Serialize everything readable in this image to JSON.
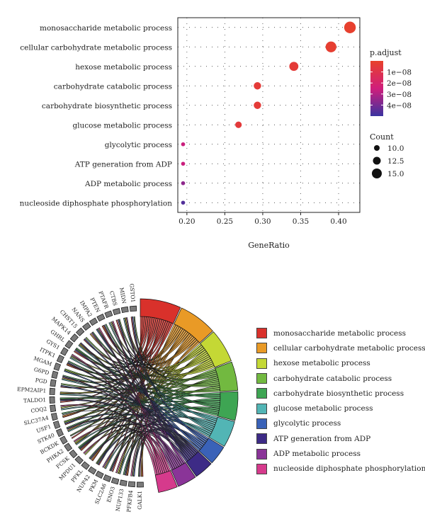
{
  "chart_data": [
    {
      "type": "scatter",
      "title": "",
      "xlabel": "GeneRatio",
      "ylabel": "",
      "xlim": [
        0.188,
        0.428
      ],
      "xticks": [
        0.2,
        0.25,
        0.3,
        0.35,
        0.4
      ],
      "xtick_labels": [
        "0.20",
        "0.25",
        "0.30",
        "0.35",
        "0.40"
      ],
      "grid": true,
      "legend_placement": "right",
      "categories": [
        "monosaccharide metabolic process",
        "cellular carbohydrate metabolic process",
        "hexose metabolic process",
        "carbohydrate catabolic process",
        "carbohydrate biosynthetic process",
        "glucose metabolic process",
        "glycolytic process",
        "ATP generation from ADP",
        "ADP metabolic process",
        "nucleoside diphosphate phosphorylation"
      ],
      "points": [
        {
          "term": "monosaccharide metabolic process",
          "gene_ratio": 0.415,
          "count": 17,
          "p_adjust": 1e-09
        },
        {
          "term": "cellular carbohydrate metabolic process",
          "gene_ratio": 0.39,
          "count": 16,
          "p_adjust": 2e-09
        },
        {
          "term": "hexose metabolic process",
          "gene_ratio": 0.341,
          "count": 14,
          "p_adjust": 4e-09
        },
        {
          "term": "carbohydrate catabolic process",
          "gene_ratio": 0.293,
          "count": 12,
          "p_adjust": 4e-09
        },
        {
          "term": "carbohydrate biosynthetic process",
          "gene_ratio": 0.293,
          "count": 12,
          "p_adjust": 4e-09
        },
        {
          "term": "glucose metabolic process",
          "gene_ratio": 0.268,
          "count": 11,
          "p_adjust": 5e-09
        },
        {
          "term": "glycolytic process",
          "gene_ratio": 0.195,
          "count": 8,
          "p_adjust": 2.6e-08
        },
        {
          "term": "ATP generation from ADP",
          "gene_ratio": 0.195,
          "count": 8,
          "p_adjust": 2.6e-08
        },
        {
          "term": "ADP metabolic process",
          "gene_ratio": 0.195,
          "count": 8,
          "p_adjust": 3.6e-08
        },
        {
          "term": "nucleoside diphosphate phosphorylation",
          "gene_ratio": 0.195,
          "count": 8,
          "p_adjust": 4.6e-08
        }
      ],
      "color_legend": {
        "title": "p.adjust",
        "ticks": [
          1e-08,
          2e-08,
          3e-08,
          4e-08
        ],
        "tick_labels": [
          "1e−08",
          "2e−08",
          "3e−08",
          "4e−08"
        ],
        "range": [
          0,
          5e-08
        ],
        "low_color": "#e8412b",
        "mid_color": "#d01e7c",
        "high_color": "#3a33a0"
      },
      "size_legend": {
        "title": "Count",
        "values": [
          10.0,
          12.5,
          15.0
        ],
        "labels": [
          "10.0",
          "12.5",
          "15.0"
        ]
      }
    },
    {
      "type": "chord",
      "genes": [
        "GALK1",
        "PFKFB4",
        "NUP133",
        "ENO3",
        "SLC2A6",
        "PKM",
        "NUP42",
        "PFKL",
        "MPDU1",
        "FCSK",
        "PHKA2",
        "BCKDK",
        "STK40",
        "USF1",
        "SLC37A4",
        "COQ2",
        "TALDO1",
        "EPM2AIP1",
        "PGD",
        "G6PD",
        "MGAM",
        "ITPK1",
        "GYS1",
        "GHRL",
        "MAPK14",
        "CHST15",
        "NANS",
        "IMPA2",
        "PTEN",
        "PTAFR",
        "CTBS",
        "MIDN",
        "GSTO1"
      ],
      "terms": [
        {
          "name": "monosaccharide metabolic process",
          "color": "#d9312b"
        },
        {
          "name": "cellular carbohydrate metabolic process",
          "color": "#e99a26"
        },
        {
          "name": "hexose metabolic process",
          "color": "#c4d835"
        },
        {
          "name": "carbohydrate catabolic process",
          "color": "#72b940"
        },
        {
          "name": "carbohydrate biosynthetic process",
          "color": "#3ea553"
        },
        {
          "name": "glucose metabolic process",
          "color": "#52b5b5"
        },
        {
          "name": "glycolytic process",
          "color": "#3a62b8"
        },
        {
          "name": "ATP generation from ADP",
          "color": "#3d2b86"
        },
        {
          "name": "ADP metabolic process",
          "color": "#8a3498"
        },
        {
          "name": "nucleoside diphosphate phosphorylation",
          "color": "#d63a8c"
        }
      ]
    }
  ]
}
